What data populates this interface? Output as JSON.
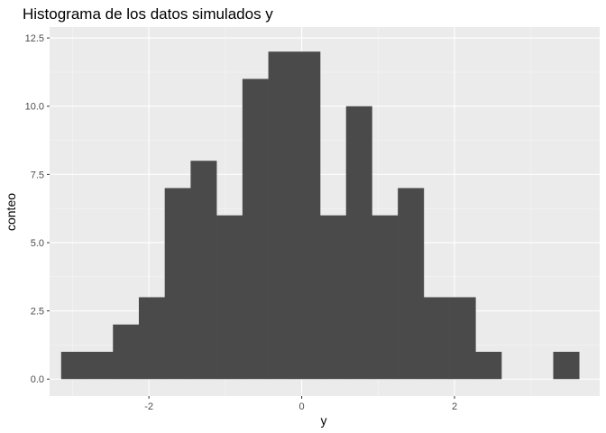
{
  "chart_data": {
    "type": "bar",
    "title": "Histograma de los datos simulados y",
    "xlabel": "y",
    "ylabel": "conteo",
    "xlim": [
      -3.3,
      3.9
    ],
    "ylim": [
      -0.62,
      12.9
    ],
    "x_ticks": [
      -2,
      0,
      2
    ],
    "x_tick_labels": [
      "-2",
      "0",
      "2"
    ],
    "x_minor_ticks": [
      -3,
      -1,
      1,
      3
    ],
    "y_ticks": [
      0.0,
      2.5,
      5.0,
      7.5,
      10.0,
      12.5
    ],
    "y_tick_labels": [
      "0.0",
      "2.5",
      "5.0",
      "7.5",
      "10.0",
      "12.5"
    ],
    "y_minor_ticks": [
      1.25,
      3.75,
      6.25,
      8.75,
      11.25
    ],
    "bins": {
      "start": -3.149,
      "width": 0.339,
      "counts": [
        1,
        1,
        2,
        3,
        7,
        8,
        6,
        11,
        12,
        12,
        6,
        10,
        6,
        7,
        3,
        3,
        1,
        0,
        0,
        1
      ]
    },
    "grid": true,
    "colors": {
      "panel_background": "#ebebeb",
      "grid_major": "#ffffff",
      "grid_minor": "#f5f5f5",
      "bar_fill": "#4a4a4a",
      "tick_color": "#333333"
    }
  }
}
